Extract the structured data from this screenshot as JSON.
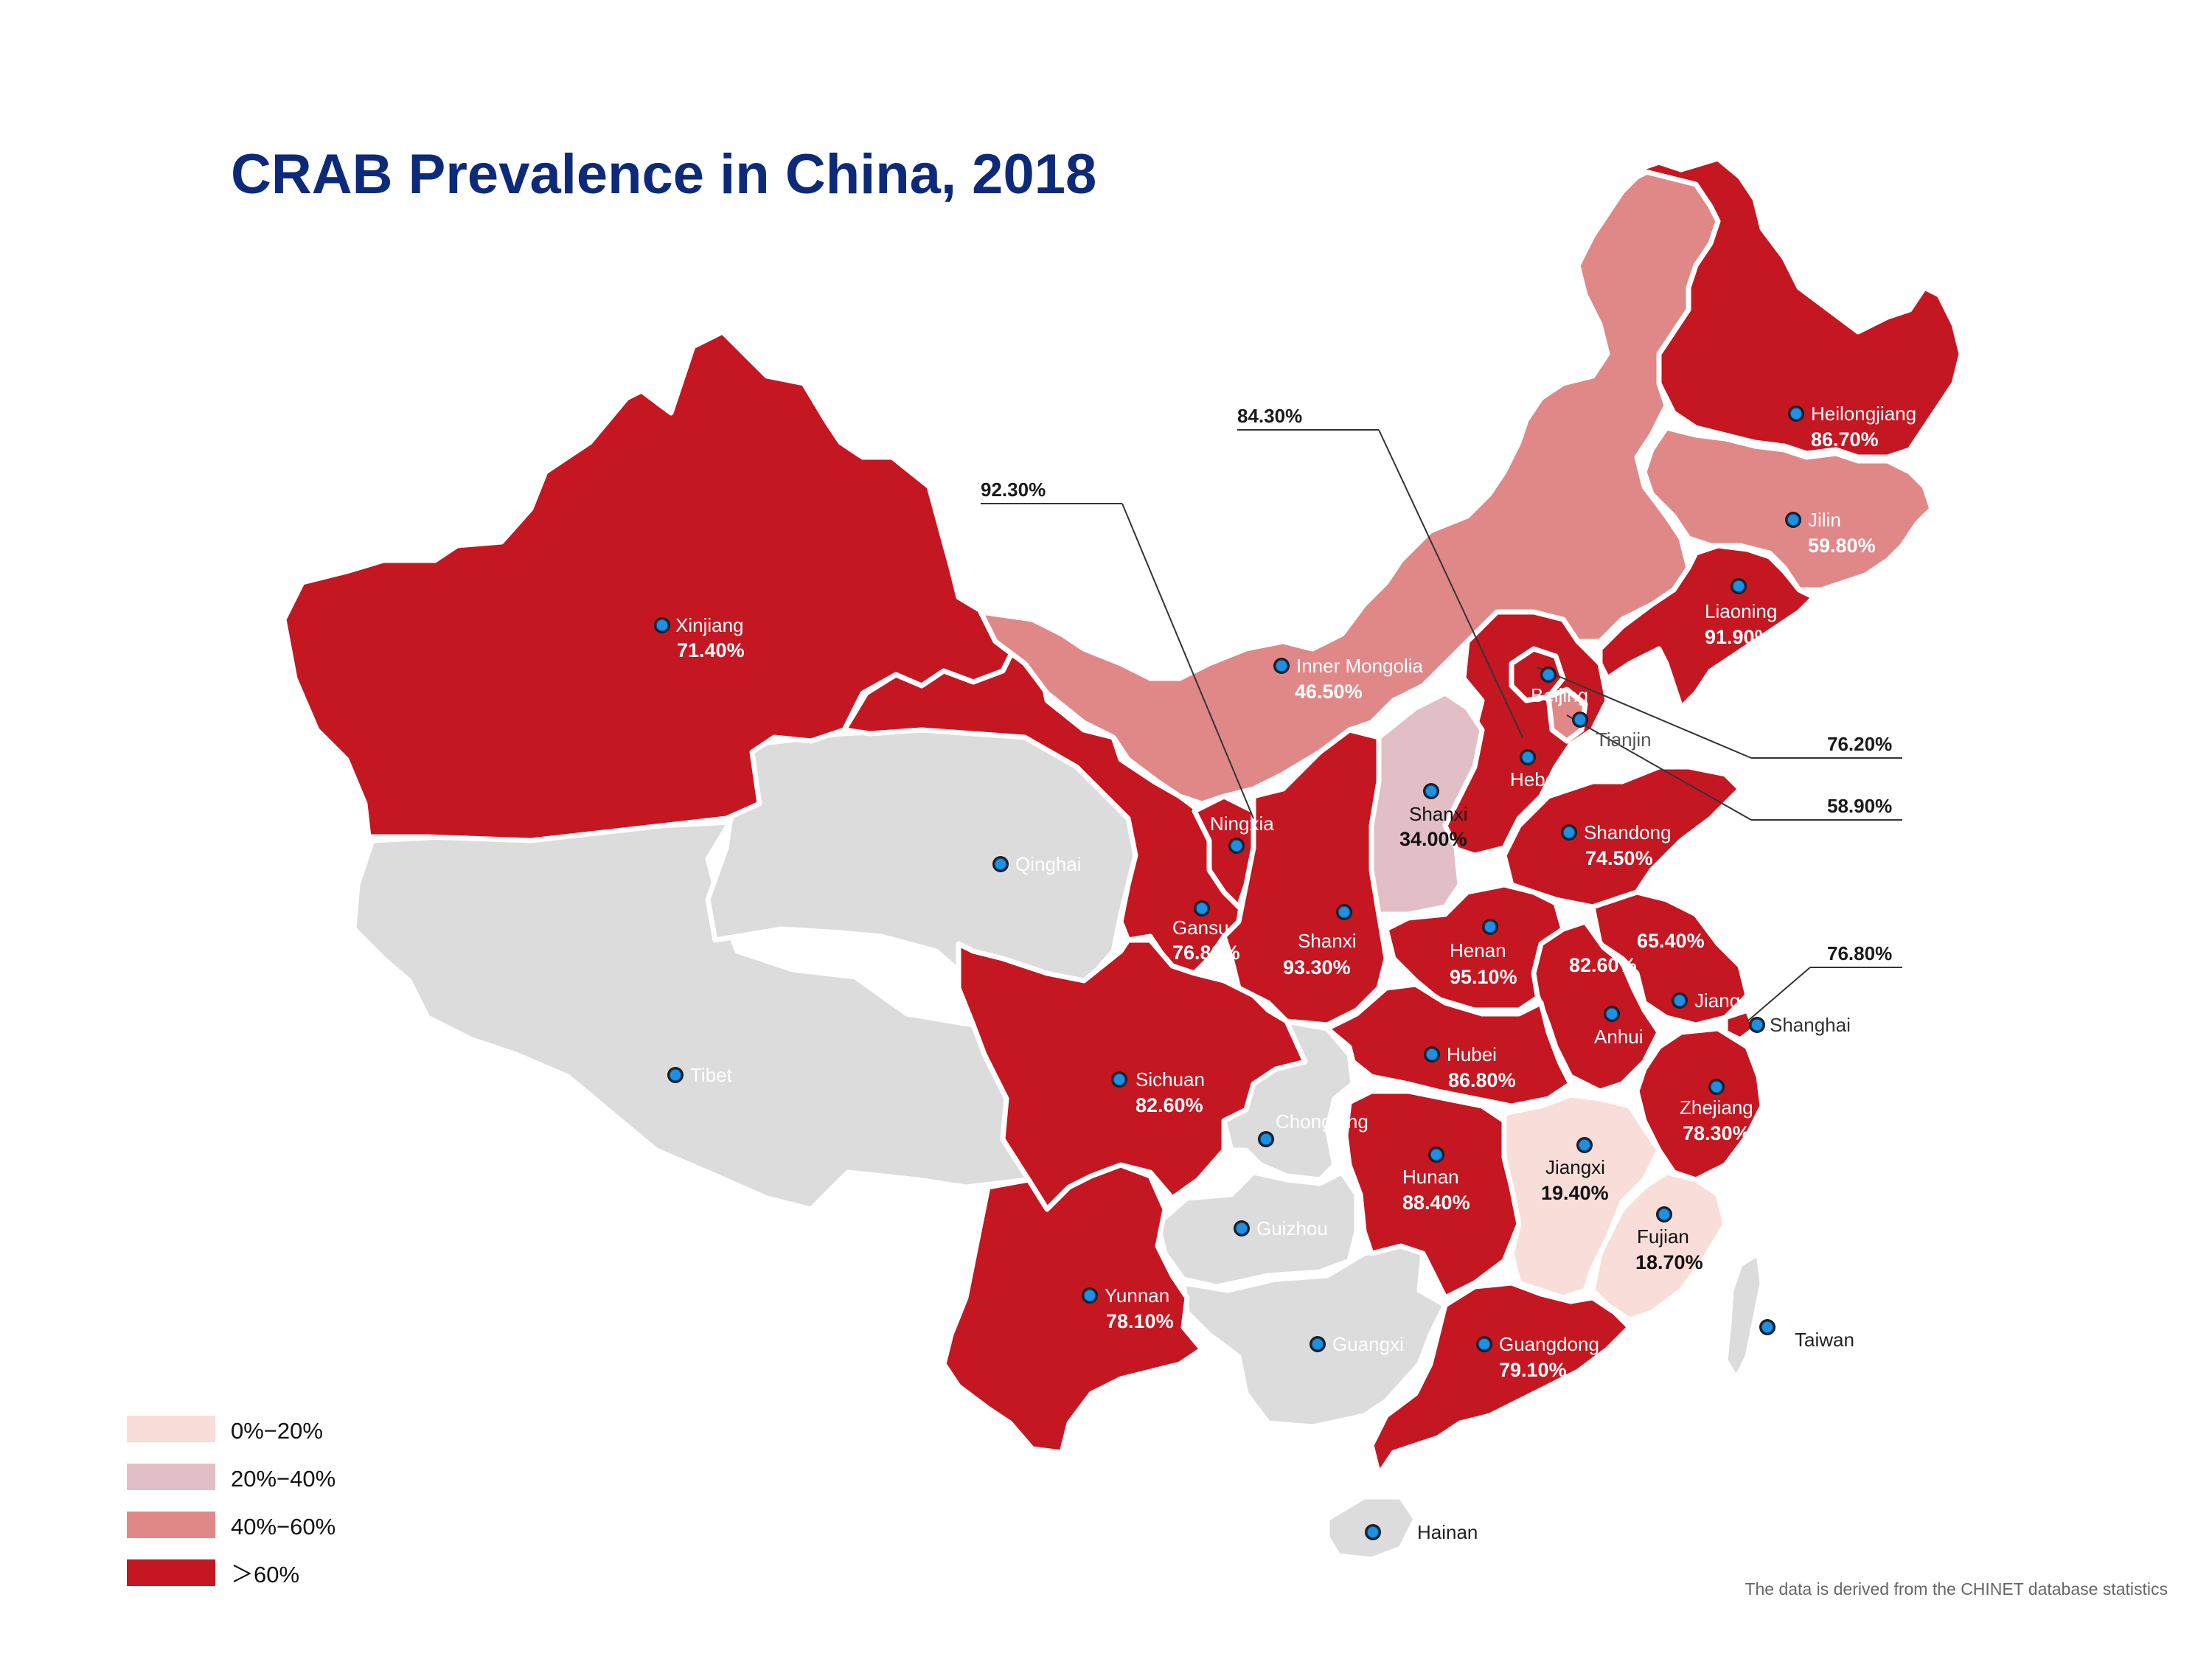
{
  "title": "CRAB Prevalence in China, 2018",
  "source": "The data is derived from the CHINET database statistics",
  "colors": {
    "bin_0_20": "#f9ddd8",
    "bin_20_40": "#e2bfc6",
    "bin_40_60": "#e08888",
    "bin_60_plus": "#c41722",
    "no_data": "#dcdcdc",
    "title": "#0d2a7a"
  },
  "legend": [
    {
      "label": "0%−20%",
      "color": "#f9ddd8"
    },
    {
      "label": "20%−40%",
      "color": "#e2bfc6"
    },
    {
      "label": "40%−60%",
      "color": "#e08888"
    },
    {
      "label": "＞60%",
      "color": "#c41722"
    }
  ],
  "provinces": [
    {
      "name": "Xinjiang",
      "value": "71.40%",
      "bin": "60+"
    },
    {
      "name": "Qinghai",
      "value": "",
      "bin": "none"
    },
    {
      "name": "Tibet",
      "value": "",
      "bin": "none"
    },
    {
      "name": "Inner Mongolia",
      "value": "46.50%",
      "bin": "40-60"
    },
    {
      "name": "Heilongjiang",
      "value": "86.70%",
      "bin": "60+"
    },
    {
      "name": "Jilin",
      "value": "59.80%",
      "bin": "40-60"
    },
    {
      "name": "Liaoning",
      "value": "91.90%",
      "bin": "60+"
    },
    {
      "name": "Beijing",
      "value": "76.20%",
      "bin": "60+"
    },
    {
      "name": "Tianjin",
      "value": "58.90%",
      "bin": "40-60"
    },
    {
      "name": "Hebei",
      "value": "84.30%",
      "bin": "60+"
    },
    {
      "name": "Shanxi",
      "value": "34.00%",
      "bin": "20-40"
    },
    {
      "name": "Shandong",
      "value": "74.50%",
      "bin": "60+"
    },
    {
      "name": "Ningxia",
      "value": "92.30%",
      "bin": "60+"
    },
    {
      "name": "Gansu",
      "value": "76.80%",
      "bin": "60+"
    },
    {
      "name": "Shanxi",
      "value": "93.30%",
      "bin": "60+"
    },
    {
      "name": "Henan",
      "value": "95.10%",
      "bin": "60+"
    },
    {
      "name": "Jiangsu",
      "value": "65.40%",
      "bin": "60+"
    },
    {
      "name": "Anhui",
      "value": "82.60%",
      "bin": "60+"
    },
    {
      "name": "Shanghai",
      "value": "76.80%",
      "bin": "60+"
    },
    {
      "name": "Hubei",
      "value": "86.80%",
      "bin": "60+"
    },
    {
      "name": "Sichuan",
      "value": "82.60%",
      "bin": "60+"
    },
    {
      "name": "Chongqing",
      "value": "",
      "bin": "none"
    },
    {
      "name": "Zhejiang",
      "value": "78.30%",
      "bin": "60+"
    },
    {
      "name": "Hunan",
      "value": "88.40%",
      "bin": "60+"
    },
    {
      "name": "Jiangxi",
      "value": "19.40%",
      "bin": "0-20"
    },
    {
      "name": "Fujian",
      "value": "18.70%",
      "bin": "0-20"
    },
    {
      "name": "Guizhou",
      "value": "",
      "bin": "none"
    },
    {
      "name": "Yunnan",
      "value": "78.10%",
      "bin": "60+"
    },
    {
      "name": "Guangxi",
      "value": "",
      "bin": "none"
    },
    {
      "name": "Guangdong",
      "value": "79.10%",
      "bin": "60+"
    },
    {
      "name": "Taiwan",
      "value": "",
      "bin": "none"
    },
    {
      "name": "Hainan",
      "value": "",
      "bin": "none"
    }
  ]
}
